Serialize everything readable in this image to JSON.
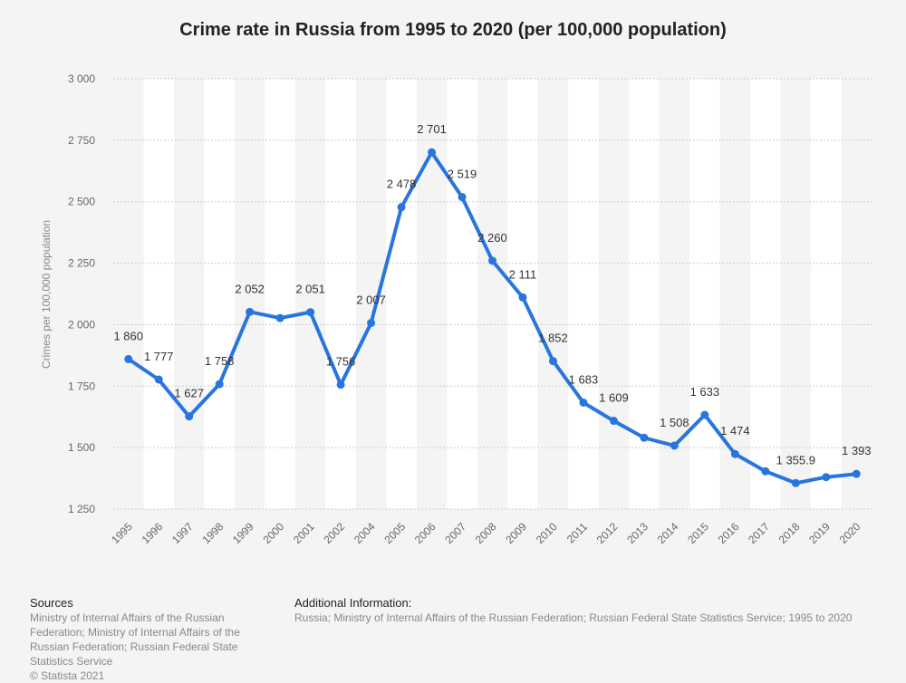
{
  "chart_data": {
    "type": "line",
    "title": "Crime rate in Russia from 1995 to 2020 (per 100,000 population)",
    "ylabel": "Crimes per 100,000 population",
    "xlabel": "",
    "ylim": [
      1250,
      3000
    ],
    "yticks": [
      1250,
      1500,
      1750,
      2000,
      2250,
      2500,
      2750,
      3000
    ],
    "ytick_labels": [
      "1 250",
      "1 500",
      "1 750",
      "2 000",
      "2 250",
      "2 500",
      "2 750",
      "3 000"
    ],
    "categories": [
      "1995",
      "1996",
      "1997",
      "1998",
      "1999",
      "2000",
      "2001",
      "2002",
      "2004",
      "2005",
      "2006",
      "2007",
      "2008",
      "2009",
      "2010",
      "2011",
      "2012",
      "2013",
      "2014",
      "2015",
      "2016",
      "2017",
      "2018",
      "2019",
      "2020"
    ],
    "values": [
      1860,
      1777,
      1627,
      1758,
      2052,
      2027,
      2051,
      1756,
      2007,
      2478,
      2701,
      2519,
      2260,
      2111,
      1852,
      1683,
      1609,
      1540,
      1508,
      1633,
      1474,
      1404,
      1355.9,
      1380,
      1393
    ],
    "data_labels": [
      "1 860",
      "1 777",
      "1 627",
      "1 758",
      "2 052",
      "",
      "2 051",
      "1 756",
      "2 007",
      "2 478",
      "2 701",
      "2 519",
      "2 260",
      "2 111",
      "1 852",
      "1 683",
      "1 609",
      "",
      "1 508",
      "1 633",
      "1 474",
      "",
      "1 355.9",
      "",
      "1 393"
    ],
    "grid": true,
    "legend": "none",
    "line_color": "#2876dd",
    "band_color": "#ffffff",
    "grid_color": "#cccccc"
  },
  "footer": {
    "sources_heading": "Sources",
    "sources_text": "Ministry of Internal Affairs of the Russian Federation; Ministry of Internal Affairs of the Russian Federation; Russian Federal State Statistics Service",
    "copyright": "© Statista 2021",
    "additional_heading": "Additional Information:",
    "additional_text": "Russia; Ministry of Internal Affairs of the Russian Federation; Russian Federal State Statistics Service; 1995 to 2020"
  }
}
